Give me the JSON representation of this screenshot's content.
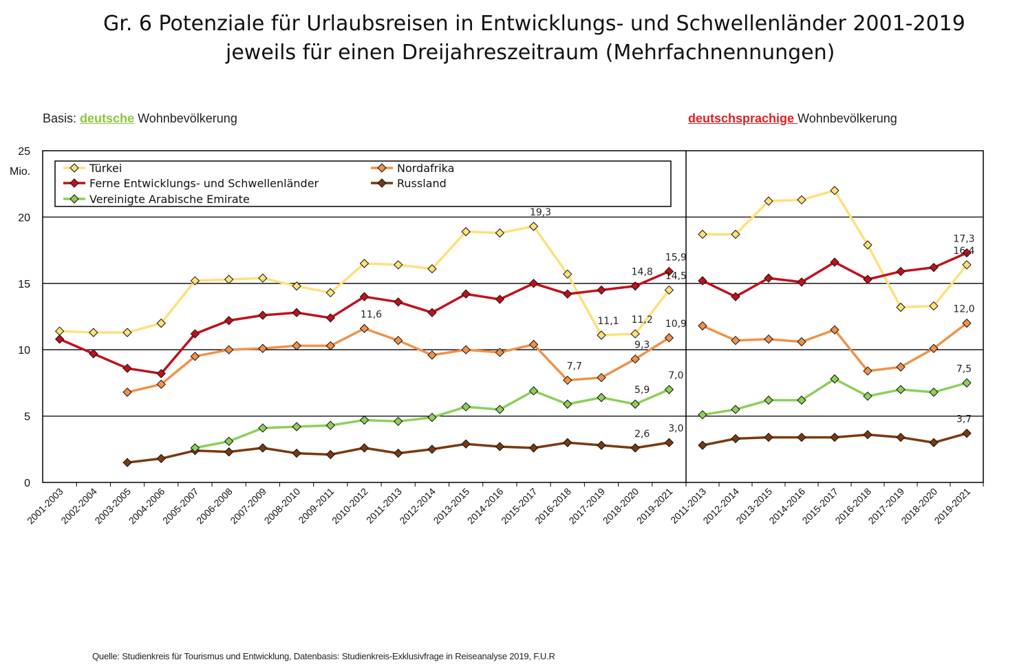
{
  "title_line1": "Gr. 6 Potenziale für Urlaubsreisen in Entwicklungs- und Schwellenländer 2001-2019",
  "title_line2": "jeweils für einen Dreijahreszeitraum (Mehrfachnennungen)",
  "basis_left": {
    "prefix": "Basis: ",
    "highlight": "deutsche",
    "suffix": " Wohnbevölkerung"
  },
  "basis_right": {
    "highlight": "deutschsprachige ",
    "suffix": "Wohnbevölkerung"
  },
  "source": "Quelle: Studienkreis für Tourismus und Entwicklung, Datenbasis: Studienkreis-Exklusivfrage in Reiseanalyse 2019, F.U.R",
  "colors": {
    "Türkei": "#ffe07a",
    "Nordafrika": "#f0914a",
    "Ferne": "#c0111b",
    "Russland": "#7a3a10",
    "VAE": "#8dcf5a"
  },
  "chart_data": {
    "type": "line",
    "ylim": [
      0,
      25
    ],
    "yticks": [
      "0",
      "5",
      "10",
      "15",
      "20",
      "25"
    ],
    "yunit": "Mio.",
    "grid": "horizontal",
    "legend_position": "top-left",
    "panels": [
      {
        "basis": "deutsche Wohnbevölkerung",
        "categories": [
          "2001-2003",
          "2002-2004",
          "2003-2005",
          "2004-2006",
          "2005-2007",
          "2006-2008",
          "2007-2009",
          "2008-2010",
          "2009-2011",
          "2010-2012",
          "2011-2013",
          "2012-2014",
          "2013-2015",
          "2014-2016",
          "2015-2017",
          "2016-2018",
          "2017-2019",
          "2018-2020",
          "2019-2021"
        ],
        "series": [
          {
            "name": "Türkei",
            "colorKey": "Türkei",
            "values": [
              11.4,
              11.3,
              11.3,
              12.0,
              15.2,
              15.3,
              15.4,
              14.8,
              14.3,
              16.5,
              16.4,
              16.1,
              18.9,
              18.8,
              19.3,
              15.7,
              11.1,
              11.2,
              14.5
            ]
          },
          {
            "name": "Nordafrika",
            "colorKey": "Nordafrika",
            "values": [
              null,
              null,
              6.8,
              7.4,
              9.5,
              10.0,
              10.1,
              10.3,
              10.3,
              11.6,
              10.7,
              9.6,
              10.0,
              9.8,
              10.4,
              7.7,
              7.9,
              9.3,
              10.9
            ]
          },
          {
            "name": "Ferne Entwicklungs- und Schwellenländer",
            "colorKey": "Ferne",
            "values": [
              10.8,
              9.7,
              8.6,
              8.2,
              11.2,
              12.2,
              12.6,
              12.8,
              12.4,
              14.0,
              13.6,
              12.8,
              14.2,
              13.8,
              15.0,
              14.2,
              14.5,
              14.8,
              15.9
            ]
          },
          {
            "name": "Russland",
            "colorKey": "Russland",
            "values": [
              null,
              null,
              1.5,
              1.8,
              2.4,
              2.3,
              2.6,
              2.2,
              2.1,
              2.6,
              2.2,
              2.5,
              2.9,
              2.7,
              2.6,
              3.0,
              2.8,
              2.6,
              3.0
            ]
          },
          {
            "name": "Vereinigte Arabische Emirate",
            "colorKey": "VAE",
            "values": [
              null,
              null,
              null,
              null,
              2.6,
              3.1,
              4.1,
              4.2,
              4.3,
              4.7,
              4.6,
              4.9,
              5.7,
              5.5,
              6.9,
              5.9,
              6.4,
              5.9,
              7.0
            ]
          }
        ],
        "data_labels": [
          {
            "series": 0,
            "index": 14,
            "text": "19,3"
          },
          {
            "series": 0,
            "index": 16,
            "text": "11,1"
          },
          {
            "series": 0,
            "index": 17,
            "text": "11,2"
          },
          {
            "series": 0,
            "index": 18,
            "text": "14,5"
          },
          {
            "series": 1,
            "index": 9,
            "text": "11,6"
          },
          {
            "series": 1,
            "index": 15,
            "text": "7,7"
          },
          {
            "series": 1,
            "index": 17,
            "text": "9,3"
          },
          {
            "series": 1,
            "index": 18,
            "text": "10,9"
          },
          {
            "series": 2,
            "index": 17,
            "text": "14,8"
          },
          {
            "series": 2,
            "index": 18,
            "text": "15,9"
          },
          {
            "series": 3,
            "index": 17,
            "text": "2,6"
          },
          {
            "series": 3,
            "index": 18,
            "text": "3,0"
          },
          {
            "series": 4,
            "index": 17,
            "text": "5,9"
          },
          {
            "series": 4,
            "index": 18,
            "text": "7,0"
          }
        ]
      },
      {
        "basis": "deutschsprachige Wohnbevölkerung",
        "categories": [
          "2011-2013",
          "2012-2014",
          "2013-2015",
          "2014-2016",
          "2015-2017",
          "2016-2018",
          "2017-2019",
          "2018-2020",
          "2019-2021"
        ],
        "series": [
          {
            "name": "Türkei",
            "colorKey": "Türkei",
            "values": [
              18.7,
              18.7,
              21.2,
              21.3,
              22.0,
              17.9,
              13.2,
              13.3,
              16.4
            ]
          },
          {
            "name": "Nordafrika",
            "colorKey": "Nordafrika",
            "values": [
              11.8,
              10.7,
              10.8,
              10.6,
              11.5,
              8.4,
              8.7,
              10.1,
              12.0
            ]
          },
          {
            "name": "Ferne Entwicklungs- und Schwellenländer",
            "colorKey": "Ferne",
            "values": [
              15.2,
              14.0,
              15.4,
              15.1,
              16.6,
              15.3,
              15.9,
              16.2,
              17.3
            ]
          },
          {
            "name": "Russland",
            "colorKey": "Russland",
            "values": [
              2.8,
              3.3,
              3.4,
              3.4,
              3.4,
              3.6,
              3.4,
              3.0,
              3.7
            ]
          },
          {
            "name": "Vereinigte Arabische Emirate",
            "colorKey": "VAE",
            "values": [
              5.1,
              5.5,
              6.2,
              6.2,
              7.8,
              6.5,
              7.0,
              6.8,
              7.5
            ]
          }
        ],
        "data_labels": [
          {
            "series": 2,
            "index": 8,
            "text": "17,3"
          },
          {
            "series": 0,
            "index": 8,
            "text": "16,4"
          },
          {
            "series": 1,
            "index": 8,
            "text": "12,0"
          },
          {
            "series": 4,
            "index": 8,
            "text": "7,5"
          },
          {
            "series": 3,
            "index": 8,
            "text": "3,7"
          }
        ]
      }
    ],
    "legend": [
      {
        "name": "Türkei",
        "colorKey": "Türkei"
      },
      {
        "name": "Nordafrika",
        "colorKey": "Nordafrika"
      },
      {
        "name": "Ferne Entwicklungs- und Schwellenländer",
        "colorKey": "Ferne"
      },
      {
        "name": "Russland",
        "colorKey": "Russland"
      },
      {
        "name": "Vereinigte Arabische Emirate",
        "colorKey": "VAE"
      }
    ]
  }
}
